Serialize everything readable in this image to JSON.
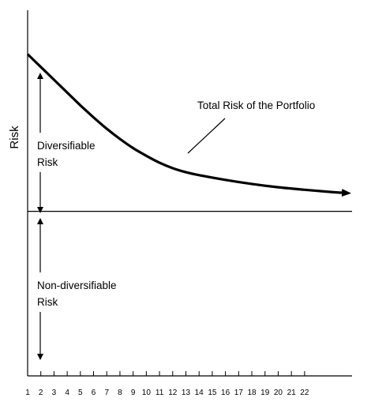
{
  "chart_data": {
    "type": "line",
    "title": "",
    "xlabel": "",
    "ylabel": "Risk",
    "x_ticks": [
      "1",
      "2",
      "3",
      "4",
      "5",
      "6",
      "7",
      "8",
      "9",
      "10",
      "11",
      "12",
      "13",
      "14",
      "15",
      "16",
      "17",
      "18",
      "19",
      "20",
      "21",
      "22"
    ],
    "xlim": [
      1,
      25.6
    ],
    "ylim": [
      0,
      100
    ],
    "grid": false,
    "baseline": 45,
    "series": [
      {
        "x": [
          1,
          2,
          3,
          4,
          5,
          6,
          7,
          8,
          9,
          10,
          11,
          12,
          13,
          14,
          16,
          18,
          20,
          22,
          24,
          25.3
        ],
        "y": [
          88,
          84.5,
          81,
          77.5,
          74,
          70.7,
          67.6,
          64.8,
          62.3,
          60.2,
          58.3,
          56.8,
          55.7,
          54.9,
          53.6,
          52.5,
          51.6,
          50.9,
          50.3,
          50.0
        ]
      }
    ],
    "annotations": {
      "curve_label": "Total Risk of the Portfolio",
      "upper_region": [
        "Diversifiable",
        "Risk"
      ],
      "lower_region": [
        "Non-diversifiable",
        "Risk"
      ]
    }
  }
}
